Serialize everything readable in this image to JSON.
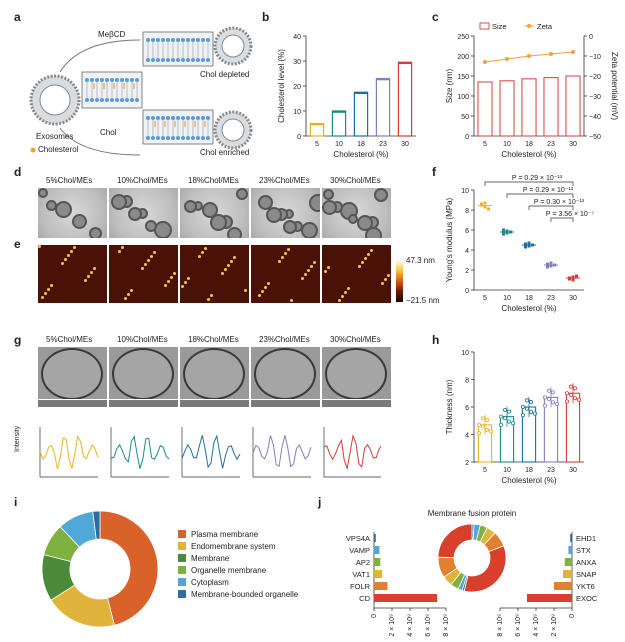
{
  "panels": {
    "a": "a",
    "b": "b",
    "c": "c",
    "d": "d",
    "e": "e",
    "f": "f",
    "g": "g",
    "h": "h",
    "i": "i",
    "j": "j"
  },
  "panel_a": {
    "mbcd": "MeβCD",
    "chol": "Chol",
    "exosomes": "Exosomes",
    "cholesterol": "Cholesterol",
    "depleted": "Chol depleted",
    "enriched": "Chol enriched"
  },
  "image_labels": [
    "5%Chol/MEs",
    "10%Chol/MEs",
    "18%Chol/MEs",
    "23%Chol/MEs",
    "30%Chol/MEs"
  ],
  "afm_scale": {
    "top": "47.3 nm",
    "bottom": "−21.5 nm"
  },
  "intensity_label": "Intensity",
  "chart_data": [
    {
      "panel": "b",
      "type": "bar",
      "categories": [
        "5",
        "10",
        "18",
        "23",
        "30"
      ],
      "values": [
        5,
        10,
        17.5,
        23,
        29.5
      ],
      "colors": [
        "#e6b422",
        "#1a8a8a",
        "#1f6f9f",
        "#8080c0",
        "#d43c3c"
      ],
      "xlabel": "Cholesterol (%)",
      "ylabel": "Cholesterol level (%)",
      "ylim": [
        0,
        40
      ],
      "yticks": [
        "0",
        "10",
        "20",
        "30",
        "40"
      ]
    },
    {
      "panel": "c",
      "type": "bar",
      "categories": [
        "5",
        "10",
        "18",
        "23",
        "30"
      ],
      "series": [
        {
          "name": "Size",
          "values": [
            135,
            138,
            143,
            146,
            150
          ],
          "color": "#d94f4f"
        },
        {
          "name": "Zeta",
          "values": [
            -13,
            -11.5,
            -10,
            -9,
            -8
          ],
          "color": "#f0a040"
        }
      ],
      "xlabel": "Cholesterol (%)",
      "ylabel": "Size (nm)",
      "y2label": "Zeta potential (mV)",
      "ylim": [
        0,
        250
      ],
      "y2lim": [
        -50,
        0
      ],
      "yticks": [
        "0",
        "50",
        "100",
        "150",
        "200",
        "250"
      ],
      "y2ticks": [
        "0",
        "−10",
        "−20",
        "−30",
        "−40",
        "−50"
      ]
    },
    {
      "panel": "f",
      "type": "scatter",
      "categories": [
        "5",
        "10",
        "18",
        "23",
        "30"
      ],
      "points": [
        [
          8.6,
          8.3,
          8.1,
          8.5,
          8.7
        ],
        [
          6.0,
          5.7,
          5.8,
          5.6,
          5.9
        ],
        [
          4.6,
          4.4,
          4.5,
          4.3,
          4.7
        ],
        [
          2.6,
          2.4,
          2.5,
          2.3,
          2.7
        ],
        [
          1.2,
          1.0,
          1.4,
          1.1,
          1.3
        ]
      ],
      "colors": [
        "#e6b422",
        "#1a8a8a",
        "#1f6f9f",
        "#8080c0",
        "#d43c3c"
      ],
      "xlabel": "Cholesterol (%)",
      "ylabel": "Young's modulus (MPa)",
      "ylim": [
        0,
        10
      ],
      "yticks": [
        "0",
        "2",
        "4",
        "6",
        "8",
        "10"
      ],
      "annotations": [
        "P = 0.29 × 10⁻¹³",
        "P = 0.29 × 10⁻¹³",
        "P = 0.30 × 10⁻¹³",
        "P = 3.56 × 10⁻⁷"
      ]
    },
    {
      "panel": "h",
      "type": "bar",
      "categories": [
        "5",
        "10",
        "18",
        "23",
        "30"
      ],
      "values": [
        4.7,
        5.3,
        6.0,
        6.7,
        7.0
      ],
      "colors": [
        "#e6b422",
        "#1a8a8a",
        "#1f6f9f",
        "#8080c0",
        "#d43c3c"
      ],
      "xlabel": "Cholesterol (%)",
      "ylabel": "Thickness (nm)",
      "ylim": [
        2,
        10
      ],
      "yticks": [
        "2",
        "4",
        "6",
        "8",
        "10"
      ]
    },
    {
      "panel": "i",
      "type": "pie",
      "categories": [
        "Plasma membrane",
        "Endomembrane system",
        "Membrane",
        "Organelle membrane",
        "Cytoplasm",
        "Membrane-bounded organelle"
      ],
      "values": [
        46,
        20,
        13,
        9,
        10,
        2
      ],
      "colors": [
        "#d9622b",
        "#e0b43a",
        "#4a8a3a",
        "#7fb040",
        "#4fa8d8",
        "#2a6f9f"
      ]
    },
    {
      "panel": "j",
      "type": "bar",
      "title": "Membrane fusion protein",
      "left": {
        "categories": [
          "VPS4A",
          "VAMP",
          "AP2",
          "VAT1",
          "FOLR",
          "CD"
        ],
        "values": [
          0.2,
          0.6,
          0.7,
          0.9,
          1.5,
          7.0
        ],
        "colors": [
          "#2a6f9f",
          "#4fa8d8",
          "#7fb040",
          "#e0b43a",
          "#e08030",
          "#d9402b"
        ]
      },
      "right": {
        "categories": [
          "EHD1",
          "STX",
          "ANXA",
          "SNAP",
          "YKT6",
          "EXOC"
        ],
        "values": [
          0.2,
          0.4,
          0.8,
          1.0,
          2.0,
          5.0
        ],
        "colors": [
          "#2a6f9f",
          "#4fa8d8",
          "#7fb040",
          "#e0b43a",
          "#e08030",
          "#d9402b"
        ]
      },
      "xticks": [
        "0",
        "2 × 10⁹",
        "4 × 10⁹",
        "6 × 10⁹",
        "8 × 10⁹"
      ],
      "xlim": [
        0,
        8
      ]
    }
  ]
}
